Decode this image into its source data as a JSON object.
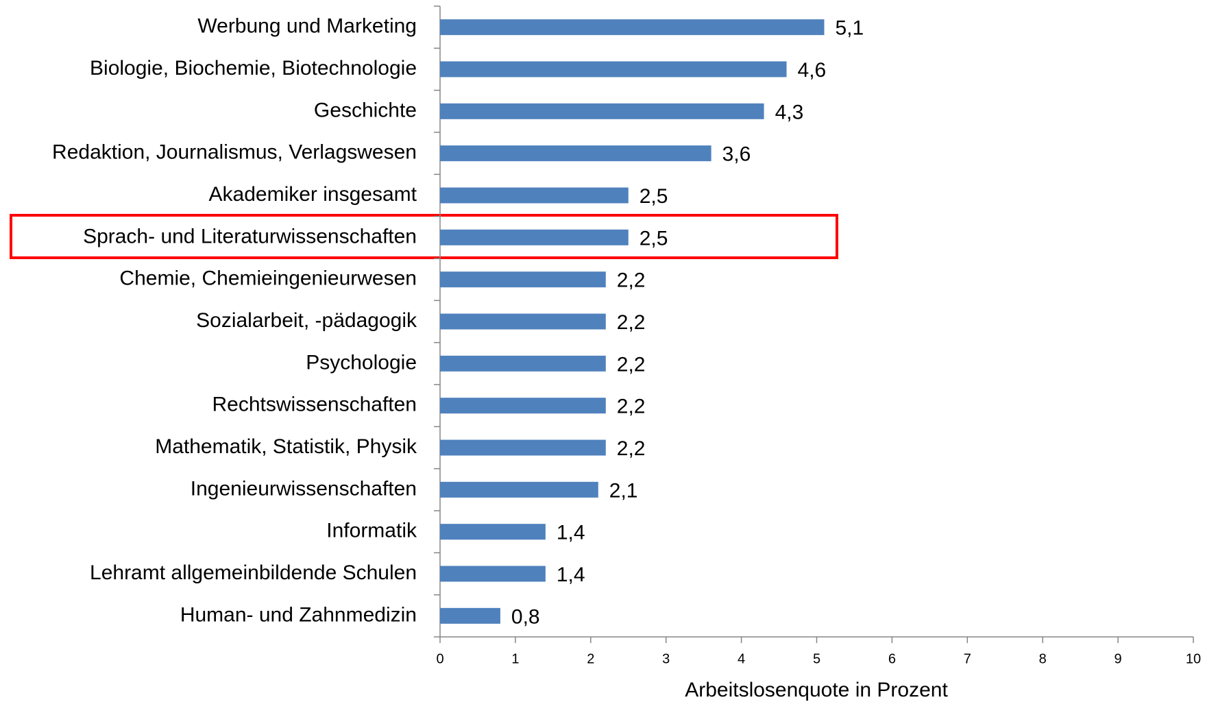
{
  "chart_data": {
    "type": "barh",
    "xlabel": "Arbeitslosenquote in Prozent",
    "categories": [
      "Werbung und Marketing",
      "Biologie, Biochemie, Biotechnologie",
      "Geschichte",
      "Redaktion, Journalismus, Verlagswesen",
      "Akademiker insgesamt",
      "Sprach- und Literaturwissenschaften",
      "Chemie, Chemieingenieurwesen",
      "Sozialarbeit, -pädagogik",
      "Psychologie",
      "Rechtswissenschaften",
      "Mathematik, Statistik, Physik",
      "Ingenieurwissenschaften",
      "Informatik",
      "Lehramt allgemeinbildende Schulen",
      "Human- und Zahnmedizin"
    ],
    "values": [
      5.1,
      4.6,
      4.3,
      3.6,
      2.5,
      2.5,
      2.2,
      2.2,
      2.2,
      2.2,
      2.2,
      2.1,
      1.4,
      1.4,
      0.8
    ],
    "value_labels": [
      "5,1",
      "4,6",
      "4,3",
      "3,6",
      "2,5",
      "2,5",
      "2,2",
      "2,2",
      "2,2",
      "2,2",
      "2,2",
      "2,1",
      "1,4",
      "1,4",
      "0,8"
    ],
    "color": "#4f81bd",
    "xlim": [
      0,
      10
    ],
    "xticks": [
      0,
      1,
      2,
      3,
      4,
      5,
      6,
      7,
      8,
      9,
      10
    ]
  }
}
